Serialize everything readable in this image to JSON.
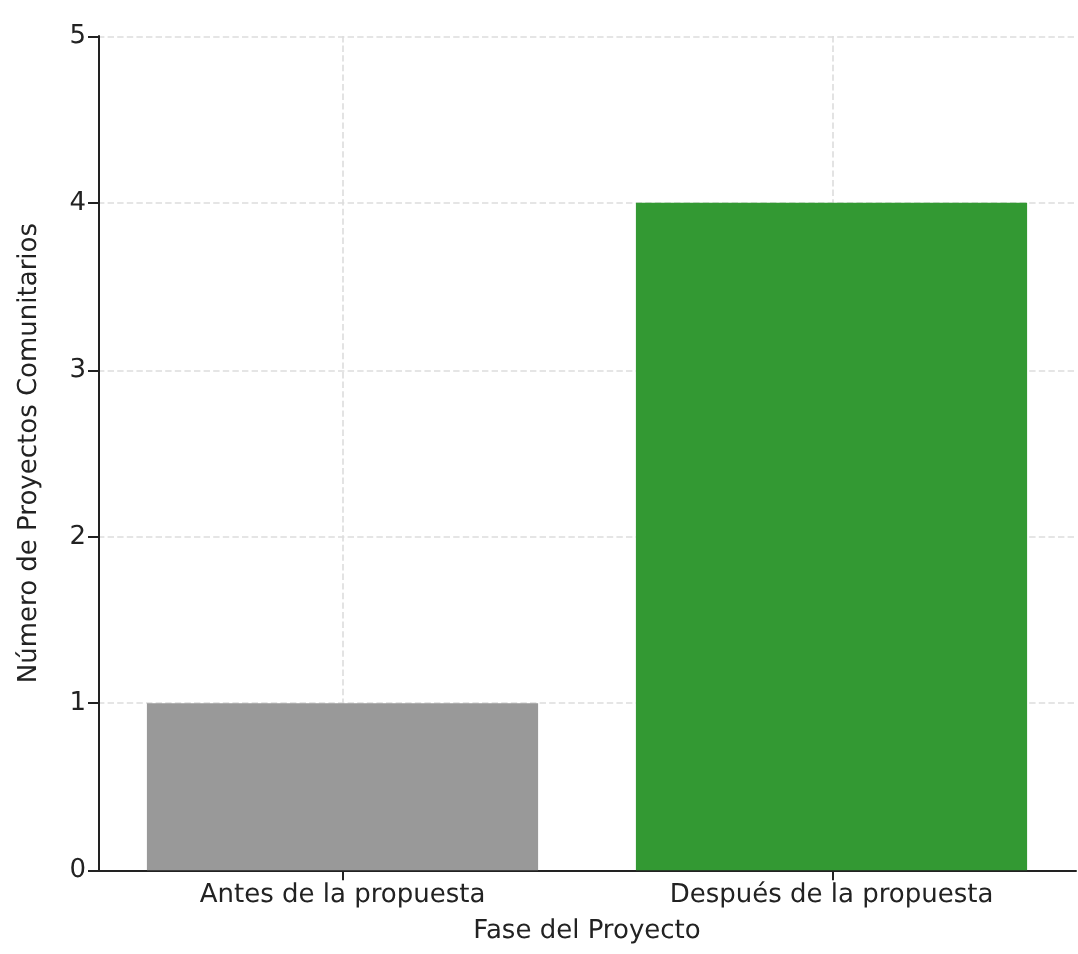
{
  "chart_data": {
    "type": "bar",
    "xlabel": "Fase del Proyecto",
    "ylabel": "Número de Proyectos Comunitarios",
    "categories": [
      "Antes de la propuesta",
      "Después de la propuesta"
    ],
    "values": [
      1,
      4
    ],
    "colors": [
      "#999999",
      "#339933"
    ],
    "ylim": [
      0,
      5
    ],
    "yticks": [
      0,
      1,
      2,
      3,
      4,
      5
    ],
    "grid": true
  }
}
